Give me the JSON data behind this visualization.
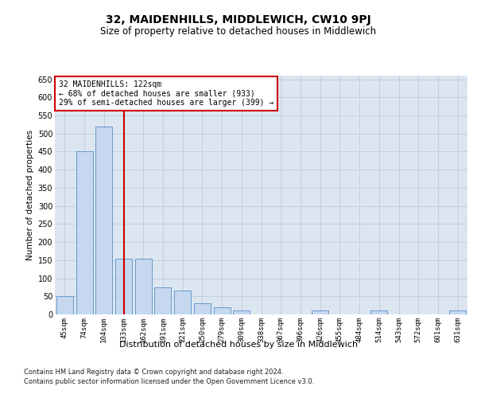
{
  "title": "32, MAIDENHILLS, MIDDLEWICH, CW10 9PJ",
  "subtitle": "Size of property relative to detached houses in Middlewich",
  "xlabel": "Distribution of detached houses by size in Middlewich",
  "ylabel": "Number of detached properties",
  "categories": [
    "45sqm",
    "74sqm",
    "104sqm",
    "133sqm",
    "162sqm",
    "191sqm",
    "221sqm",
    "250sqm",
    "279sqm",
    "309sqm",
    "338sqm",
    "367sqm",
    "396sqm",
    "426sqm",
    "455sqm",
    "484sqm",
    "514sqm",
    "543sqm",
    "572sqm",
    "601sqm",
    "631sqm"
  ],
  "values": [
    50,
    450,
    520,
    155,
    155,
    75,
    65,
    30,
    20,
    10,
    0,
    0,
    0,
    10,
    0,
    0,
    10,
    0,
    0,
    0,
    10
  ],
  "bar_color": "#c5d8ef",
  "bar_edge_color": "#6699cc",
  "vline_x_index": 3,
  "vline_color": "#cc0000",
  "annotation_text": "32 MAIDENHILLS: 122sqm\n← 68% of detached houses are smaller (933)\n29% of semi-detached houses are larger (399) →",
  "annotation_box_facecolor": "#ffffff",
  "annotation_box_edgecolor": "#cc0000",
  "ylim": [
    0,
    660
  ],
  "yticks": [
    0,
    50,
    100,
    150,
    200,
    250,
    300,
    350,
    400,
    450,
    500,
    550,
    600,
    650
  ],
  "background_color": "#dce6f0",
  "footer_line1": "Contains HM Land Registry data © Crown copyright and database right 2024.",
  "footer_line2": "Contains public sector information licensed under the Open Government Licence v3.0.",
  "title_fontsize": 10,
  "subtitle_fontsize": 8.5,
  "xlabel_fontsize": 8,
  "ylabel_fontsize": 7.5,
  "ytick_fontsize": 7,
  "xtick_fontsize": 6.5,
  "annotation_fontsize": 7,
  "footer_fontsize": 6
}
